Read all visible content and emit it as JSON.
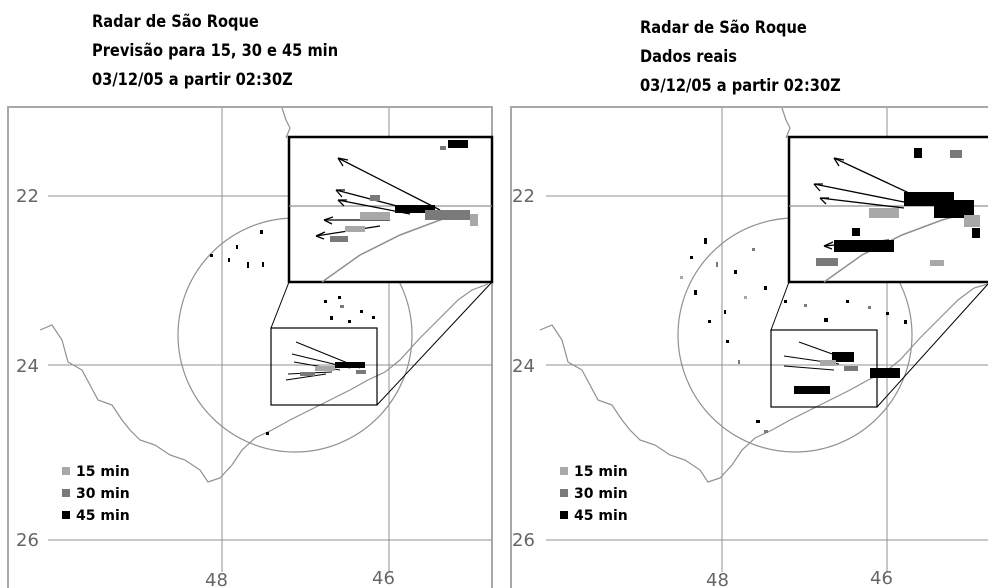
{
  "colors": {
    "frame": "#a8a8a8",
    "grid": "#909090",
    "coast": "#909090",
    "c15": "#a8a8a8",
    "c30": "#7a7a7a",
    "c45": "#000000"
  },
  "panels": [
    {
      "id": "left",
      "title_lines": [
        "Radar de São Roque",
        "Previsão para 15, 30 e 45 min",
        "03/12/05 a partir 02:30Z"
      ]
    },
    {
      "id": "right",
      "title_lines": [
        "Radar de São Roque",
        "Dados reais",
        "03/12/05 a partir 02:30Z"
      ]
    }
  ],
  "axes": {
    "lat_labels": [
      "22",
      "24",
      "26"
    ],
    "lon_labels": [
      "48",
      "46"
    ]
  },
  "legend": [
    {
      "label": "15 min",
      "color_key": "c15"
    },
    {
      "label": "30 min",
      "color_key": "c30"
    },
    {
      "label": "45 min",
      "color_key": "c45"
    }
  ]
}
